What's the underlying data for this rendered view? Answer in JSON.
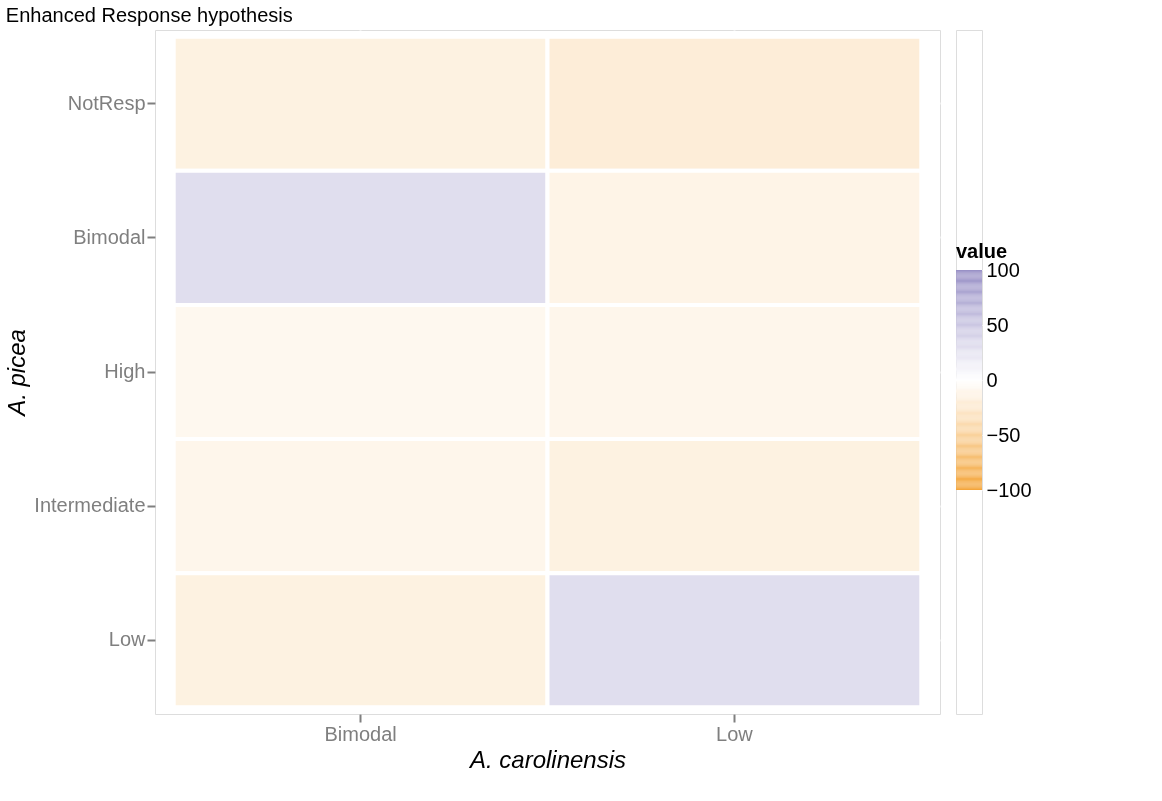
{
  "chart_data": {
    "type": "heatmap",
    "title": "Enhanced Response hypothesis",
    "xlabel": "A. carolinensis",
    "ylabel": "A. picea",
    "legend_title": "value",
    "categories": [
      "Bimodal",
      "Low"
    ],
    "y_categories": [
      "NotResp",
      "Bimodal",
      "High",
      "Intermediate",
      "Low"
    ],
    "cells": [
      [
        -15,
        -20
      ],
      [
        30,
        -12
      ],
      [
        -8,
        -10
      ],
      [
        -10,
        -15
      ],
      [
        -15,
        30
      ]
    ],
    "clim": [
      -100,
      100
    ],
    "cticks": [
      -100,
      -50,
      0,
      50,
      100
    ],
    "grid": true
  }
}
